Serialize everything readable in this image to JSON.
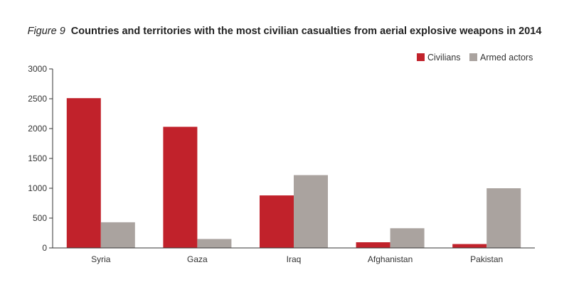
{
  "title": {
    "figure_label": "Figure 9",
    "text": "Countries and territories with the most civilian casualties from aerial explosive weapons in 2014"
  },
  "colors": {
    "civilians": "#c1222b",
    "armed_actors": "#aaa39f",
    "axis": "#333333"
  },
  "chart_data": {
    "type": "bar",
    "categories": [
      "Syria",
      "Gaza",
      "Iraq",
      "Afghanistan",
      "Pakistan"
    ],
    "series": [
      {
        "name": "Civilians",
        "values": [
          2510,
          2030,
          880,
          95,
          65
        ]
      },
      {
        "name": "Armed actors",
        "values": [
          430,
          150,
          1220,
          330,
          1000
        ]
      }
    ],
    "ylim": [
      0,
      3000
    ],
    "yticks": [
      0,
      500,
      1000,
      1500,
      2000,
      2500,
      3000
    ],
    "grid": false,
    "legend": "top-right"
  }
}
